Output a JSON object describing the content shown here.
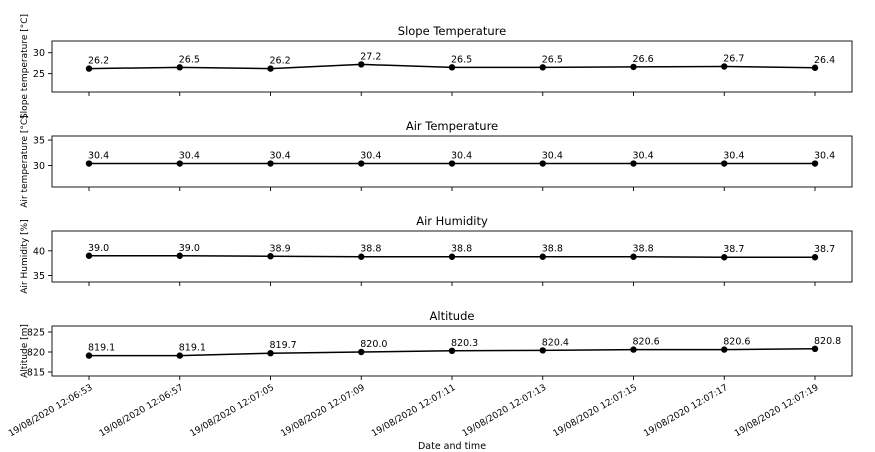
{
  "chart_data": [
    {
      "type": "line",
      "title": "Slope Temperature",
      "ylabel": "Slope temperature [°C]",
      "xlabel": "",
      "x": [
        "19/08/2020 12:06:53",
        "19/08/2020 12:06:57",
        "19/08/2020 12:07:05",
        "19/08/2020 12:07:09",
        "19/08/2020 12:07:11",
        "19/08/2020 12:07:13",
        "19/08/2020 12:07:15",
        "19/08/2020 12:07:17",
        "19/08/2020 12:07:19"
      ],
      "values": [
        26.2,
        26.5,
        26.2,
        27.2,
        26.5,
        26.5,
        26.6,
        26.7,
        26.4
      ],
      "labels": [
        "26.2",
        "26.5",
        "26.2",
        "27.2",
        "26.5",
        "26.5",
        "26.6",
        "26.7",
        "26.4"
      ],
      "ylim": [
        20.6,
        32.8
      ],
      "yticks": [
        "25",
        "30"
      ],
      "ytick_values": [
        25,
        30
      ],
      "grid": false,
      "marker": "circle",
      "color": "#000000"
    },
    {
      "type": "line",
      "title": "Air Temperature",
      "ylabel": "Air temperature [°C]",
      "xlabel": "",
      "x": [
        "19/08/2020 12:06:53",
        "19/08/2020 12:06:57",
        "19/08/2020 12:07:05",
        "19/08/2020 12:07:09",
        "19/08/2020 12:07:11",
        "19/08/2020 12:07:13",
        "19/08/2020 12:07:15",
        "19/08/2020 12:07:17",
        "19/08/2020 12:07:19"
      ],
      "values": [
        30.4,
        30.4,
        30.4,
        30.4,
        30.4,
        30.4,
        30.4,
        30.4,
        30.4
      ],
      "labels": [
        "30.4",
        "30.4",
        "30.4",
        "30.4",
        "30.4",
        "30.4",
        "30.4",
        "30.4",
        "30.4"
      ],
      "ylim": [
        25.8,
        35.8
      ],
      "yticks": [
        "30",
        "35"
      ],
      "ytick_values": [
        30,
        35
      ],
      "grid": false,
      "marker": "circle",
      "color": "#000000"
    },
    {
      "type": "line",
      "title": "Air Humidity",
      "ylabel": "Air Humidity [%]",
      "xlabel": "",
      "x": [
        "19/08/2020 12:06:53",
        "19/08/2020 12:06:57",
        "19/08/2020 12:07:05",
        "19/08/2020 12:07:09",
        "19/08/2020 12:07:11",
        "19/08/2020 12:07:13",
        "19/08/2020 12:07:15",
        "19/08/2020 12:07:17",
        "19/08/2020 12:07:19"
      ],
      "values": [
        39.0,
        39.0,
        38.9,
        38.8,
        38.8,
        38.8,
        38.8,
        38.7,
        38.7
      ],
      "labels": [
        "39.0",
        "39.0",
        "38.9",
        "38.8",
        "38.8",
        "38.8",
        "38.8",
        "38.7",
        "38.7"
      ],
      "ylim": [
        33.7,
        44.0
      ],
      "yticks": [
        "35",
        "40"
      ],
      "ytick_values": [
        35,
        40
      ],
      "grid": false,
      "marker": "circle",
      "color": "#000000"
    },
    {
      "type": "line",
      "title": "Altitude",
      "ylabel": "Altitude [m]",
      "xlabel": "Date and time",
      "x": [
        "19/08/2020 12:06:53",
        "19/08/2020 12:06:57",
        "19/08/2020 12:07:05",
        "19/08/2020 12:07:09",
        "19/08/2020 12:07:11",
        "19/08/2020 12:07:13",
        "19/08/2020 12:07:15",
        "19/08/2020 12:07:17",
        "19/08/2020 12:07:19"
      ],
      "values": [
        819.1,
        819.1,
        819.7,
        820.0,
        820.3,
        820.4,
        820.6,
        820.6,
        820.8
      ],
      "labels": [
        "819.1",
        "819.1",
        "819.7",
        "820.0",
        "820.3",
        "820.4",
        "820.6",
        "820.6",
        "820.8"
      ],
      "ylim": [
        814.0,
        826.5
      ],
      "yticks": [
        "815",
        "820",
        "825"
      ],
      "ytick_values": [
        815,
        820,
        825
      ],
      "grid": false,
      "marker": "circle",
      "color": "#000000"
    }
  ]
}
